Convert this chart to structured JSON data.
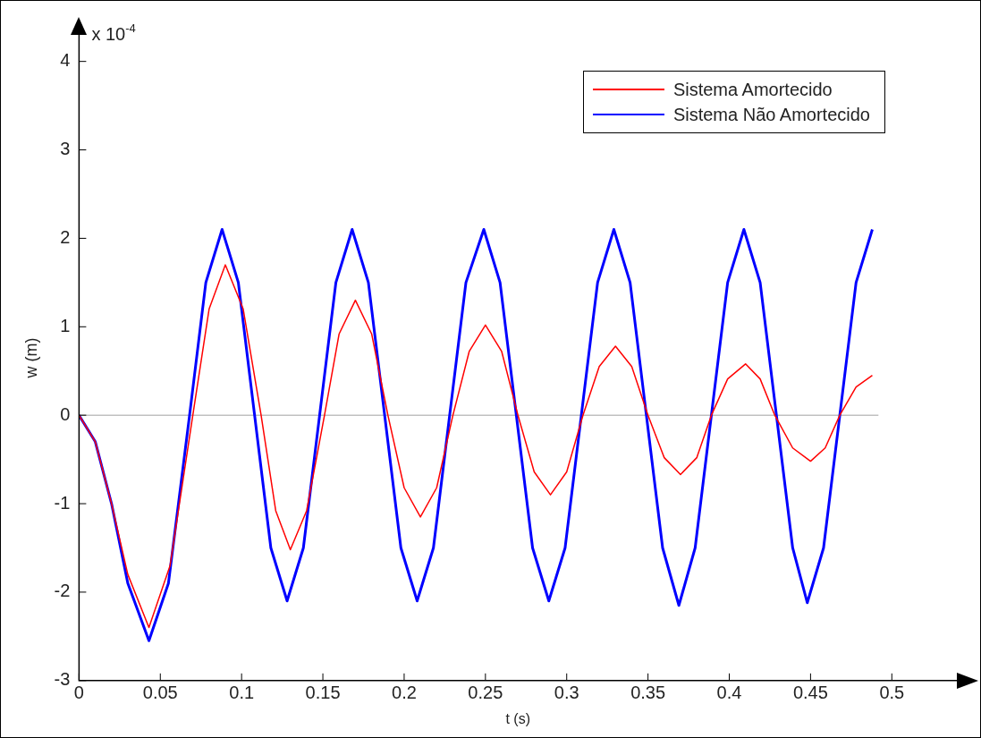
{
  "chart_data": {
    "type": "line",
    "xlabel": "t (s)",
    "ylabel": "w (m)",
    "annotations": [
      "x 10$^{-4}$"
    ],
    "xlim": [
      0,
      0.54
    ],
    "ylim": [
      -3,
      4.3
    ],
    "xticks": [
      0,
      0.05,
      0.1,
      0.15,
      0.2,
      0.25,
      0.3,
      0.35,
      0.4,
      0.45,
      0.5
    ],
    "yticks": [
      -3,
      -2,
      -1,
      0,
      1,
      2,
      3,
      4
    ],
    "grid": false,
    "legend": "top right",
    "marker": "none",
    "line_style": "solid",
    "ref_lines": [
      {
        "axis": "y",
        "value": 0,
        "color": "#c0c0c0"
      }
    ],
    "series": [
      {
        "name": "Sistema Amortecido",
        "color": "#ff0000",
        "x": [
          0,
          0.01,
          0.02,
          0.03,
          0.043,
          0.056,
          0.07,
          0.08,
          0.09,
          0.101,
          0.112,
          0.121,
          0.13,
          0.14,
          0.151,
          0.16,
          0.17,
          0.18,
          0.19,
          0.2,
          0.21,
          0.22,
          0.23,
          0.24,
          0.25,
          0.26,
          0.27,
          0.28,
          0.29,
          0.3,
          0.31,
          0.32,
          0.33,
          0.34,
          0.35,
          0.36,
          0.37,
          0.38,
          0.389,
          0.399,
          0.41,
          0.419,
          0.428,
          0.439,
          0.45,
          0.459,
          0.468,
          0.478,
          0.488
        ],
        "values": [
          0,
          -0.3,
          -1.0,
          -1.8,
          -2.4,
          -1.7,
          0,
          1.2,
          1.7,
          1.2,
          0,
          -1.08,
          -1.52,
          -1.08,
          0,
          0.92,
          1.3,
          0.92,
          0,
          -0.82,
          -1.15,
          -0.82,
          0,
          0.72,
          1.02,
          0.72,
          0,
          -0.64,
          -0.9,
          -0.64,
          0,
          0.55,
          0.78,
          0.55,
          0,
          -0.48,
          -0.67,
          -0.48,
          0,
          0.41,
          0.58,
          0.41,
          0,
          -0.37,
          -0.52,
          -0.37,
          0,
          0.32,
          0.45
        ]
      },
      {
        "name": "Sistema Não Amortecido",
        "color": "#0000ff",
        "x": [
          0,
          0.01,
          0.02,
          0.03,
          0.043,
          0.055,
          0.068,
          0.078,
          0.088,
          0.098,
          0.108,
          0.118,
          0.128,
          0.138,
          0.148,
          0.158,
          0.168,
          0.178,
          0.188,
          0.198,
          0.208,
          0.218,
          0.228,
          0.238,
          0.249,
          0.259,
          0.269,
          0.279,
          0.289,
          0.299,
          0.309,
          0.319,
          0.329,
          0.339,
          0.349,
          0.359,
          0.369,
          0.379,
          0.389,
          0.399,
          0.409,
          0.419,
          0.429,
          0.439,
          0.448,
          0.458,
          0.468,
          0.478,
          0.488
        ],
        "values": [
          0,
          -0.3,
          -1.0,
          -1.9,
          -2.55,
          -1.9,
          0,
          1.5,
          2.1,
          1.5,
          0,
          -1.5,
          -2.1,
          -1.5,
          0,
          1.5,
          2.1,
          1.5,
          0,
          -1.5,
          -2.1,
          -1.5,
          0,
          1.5,
          2.1,
          1.5,
          0,
          -1.5,
          -2.1,
          -1.5,
          0,
          1.5,
          2.1,
          1.5,
          0,
          -1.5,
          -2.15,
          -1.5,
          0,
          1.5,
          2.1,
          1.5,
          0,
          -1.5,
          -2.12,
          -1.5,
          0,
          1.5,
          2.1
        ]
      }
    ]
  }
}
